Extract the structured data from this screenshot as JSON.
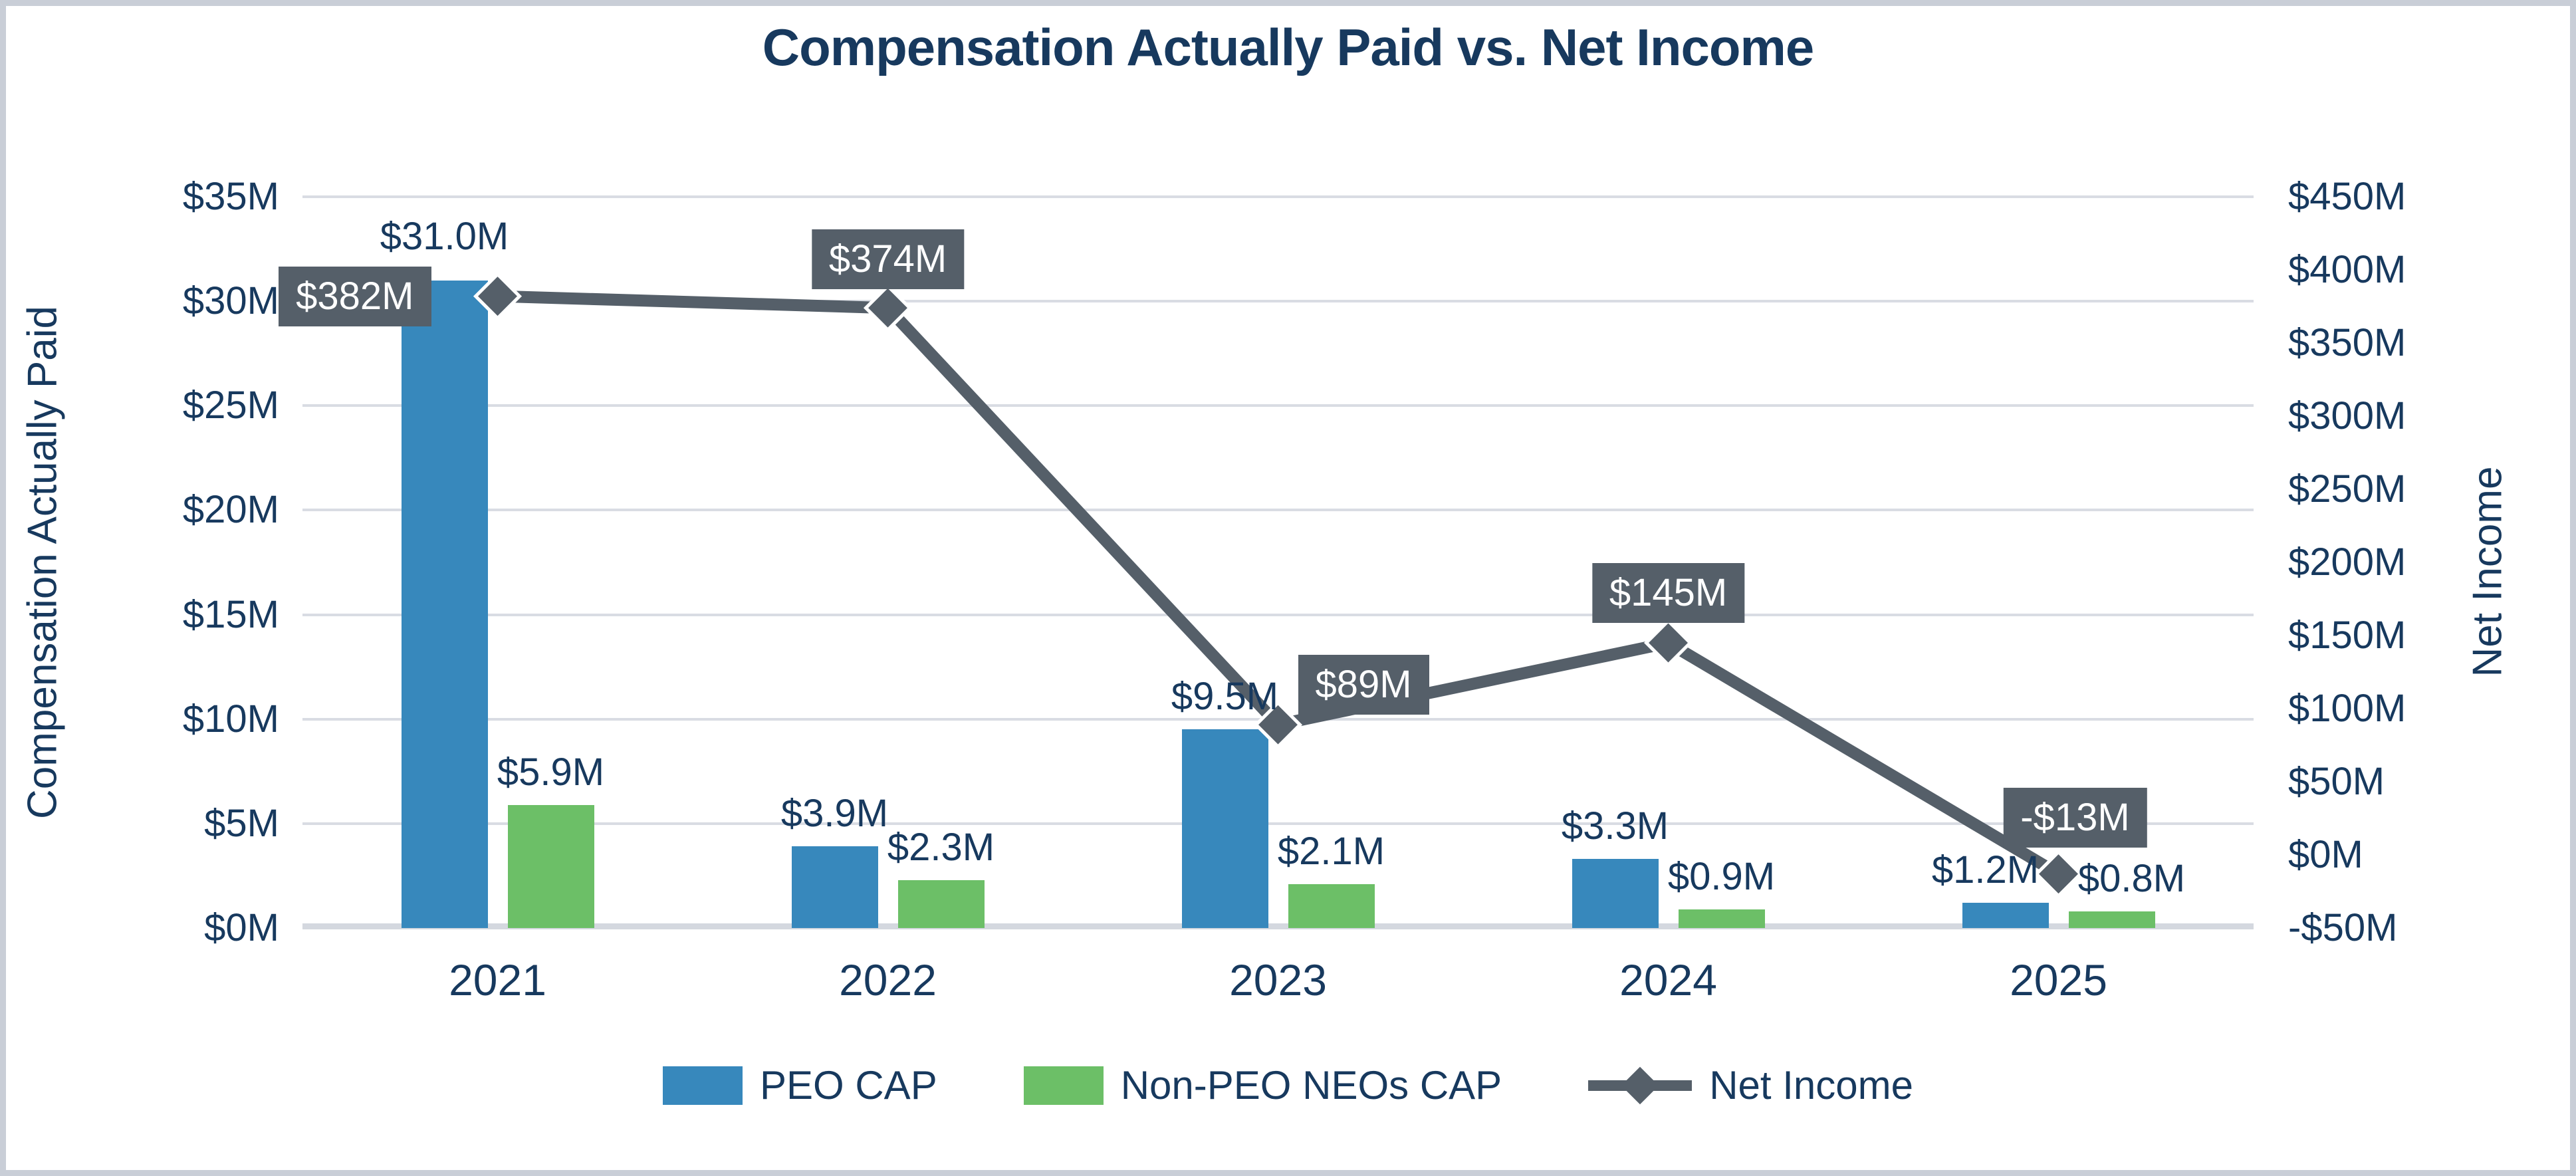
{
  "chart_data": {
    "type": "combo",
    "title": "Compensation Actually Paid vs. Net Income",
    "categories": [
      "2021",
      "2022",
      "2023",
      "2024",
      "2025"
    ],
    "series": [
      {
        "name": "PEO CAP",
        "type": "bar",
        "axis": "left",
        "color": "#3788BC",
        "values": [
          31.0,
          3.9,
          9.5,
          3.3,
          1.2
        ],
        "labels": [
          "$31.0M",
          "$3.9M",
          "$9.5M",
          "$3.3M",
          "$1.2M"
        ]
      },
      {
        "name": "Non-PEO NEOs CAP",
        "type": "bar",
        "axis": "left",
        "color": "#6CBF67",
        "values": [
          5.9,
          2.3,
          2.1,
          0.9,
          0.8
        ],
        "labels": [
          "$5.9M",
          "$2.3M",
          "$2.1M",
          "$0.9M",
          "$0.8M"
        ]
      },
      {
        "name": "Net Income",
        "type": "line",
        "axis": "right",
        "color": "#555F69",
        "values": [
          382,
          374,
          89,
          145,
          -13
        ],
        "labels": [
          "$382M",
          "$374M",
          "$89M",
          "$145M",
          "-$13M"
        ]
      }
    ],
    "left_axis": {
      "title": "Compensation Actually Paid",
      "min": 0,
      "max": 35,
      "tick_step": 5,
      "ticks": [
        "$35M",
        "$30M",
        "$25M",
        "$20M",
        "$15M",
        "$10M",
        "$5M",
        "$0M"
      ]
    },
    "right_axis": {
      "title": "Net Income",
      "min": -50,
      "max": 450,
      "tick_step": 50,
      "ticks": [
        "$450M",
        "$400M",
        "$350M",
        "$300M",
        "$250M",
        "$200M",
        "$150M",
        "$100M",
        "$50M",
        "$0M",
        "-$50M"
      ]
    },
    "grid": true,
    "legend_position": "bottom",
    "colors": {
      "navy_text": "#17395E",
      "bar_blue": "#3788BC",
      "bar_green": "#6CBF67",
      "line_gray": "#555F69",
      "gridline": "#D9DCE3",
      "baseline": "#D4D8DF",
      "label_box_bg": "#555F69",
      "label_box_text": "#FFFFFF",
      "frame_border": "#C9CED7",
      "background": "#FFFFFF"
    }
  }
}
